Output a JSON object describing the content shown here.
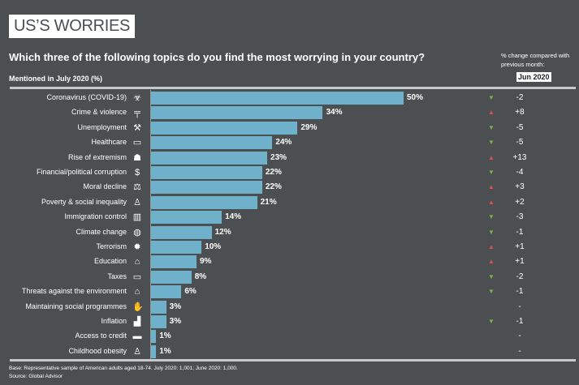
{
  "header": {
    "title": "US’S WORRIES",
    "question": "Which three of the following topics do you find the most worrying in your country?",
    "subtitle": "Mentioned in July 2020 (%)",
    "compare_label": "% change compared with previous month:",
    "compare_month": "Jun 2020"
  },
  "colors": {
    "bar": "#6fb0ca",
    "up": "#e4504a",
    "down": "#7cb342",
    "background": "#4b4f51"
  },
  "chart_data": {
    "type": "bar",
    "orientation": "horizontal",
    "title": "Which three of the following topics do you find the most worrying in your country?",
    "xlabel": "Mentioned in July 2020 (%)",
    "xlim": [
      0,
      50
    ],
    "categories": [
      "Coronavirus (COVID-19)",
      "Crime & violence",
      "Unemployment",
      "Healthcare",
      "Rise of extremism",
      "Financial/political corruption",
      "Moral decline",
      "Poverty & social inequality",
      "Immigration control",
      "Climate change",
      "Terrorism",
      "Education",
      "Taxes",
      "Threats against the environment",
      "Maintaining social programmes",
      "Inflation",
      "Access to credit",
      "Childhood obesity"
    ],
    "values": [
      50,
      34,
      29,
      24,
      23,
      22,
      22,
      21,
      14,
      12,
      10,
      9,
      8,
      6,
      3,
      3,
      1,
      1
    ],
    "value_labels": [
      "50%",
      "34%",
      "29%",
      "24%",
      "23%",
      "22%",
      "22%",
      "21%",
      "14%",
      "12%",
      "10%",
      "9%",
      "8%",
      "6%",
      "3%",
      "3%",
      "1%",
      "1%"
    ],
    "change_labels": [
      "-2",
      "+8",
      "-5",
      "-5",
      "+13",
      "-4",
      "+3",
      "+2",
      "-3",
      "-1",
      "+1",
      "+1",
      "-2",
      "-1",
      "-",
      "-1",
      "-",
      "-"
    ],
    "change_direction": [
      "down",
      "up",
      "down",
      "down",
      "up",
      "down",
      "up",
      "up",
      "down",
      "down",
      "up",
      "up",
      "down",
      "down",
      "none",
      "down",
      "none",
      "none"
    ],
    "icons": [
      "biohazard-icon",
      "gun-icon",
      "worker-icon",
      "ambulance-icon",
      "extremist-icon",
      "money-bag-icon",
      "moral-icon",
      "poor-person-icon",
      "luggage-icon",
      "globe-icon",
      "bomb-icon",
      "graduation-cap-icon",
      "money-icon",
      "factory-icon",
      "hand-icon",
      "chart-icon",
      "credit-card-icon",
      "child-icon"
    ]
  },
  "footer": {
    "base": "Base: Representative sample of American adults aged 18-74. July 2020: 1,001; June 2020: 1,000.",
    "source": "Source: Global Advisor"
  }
}
